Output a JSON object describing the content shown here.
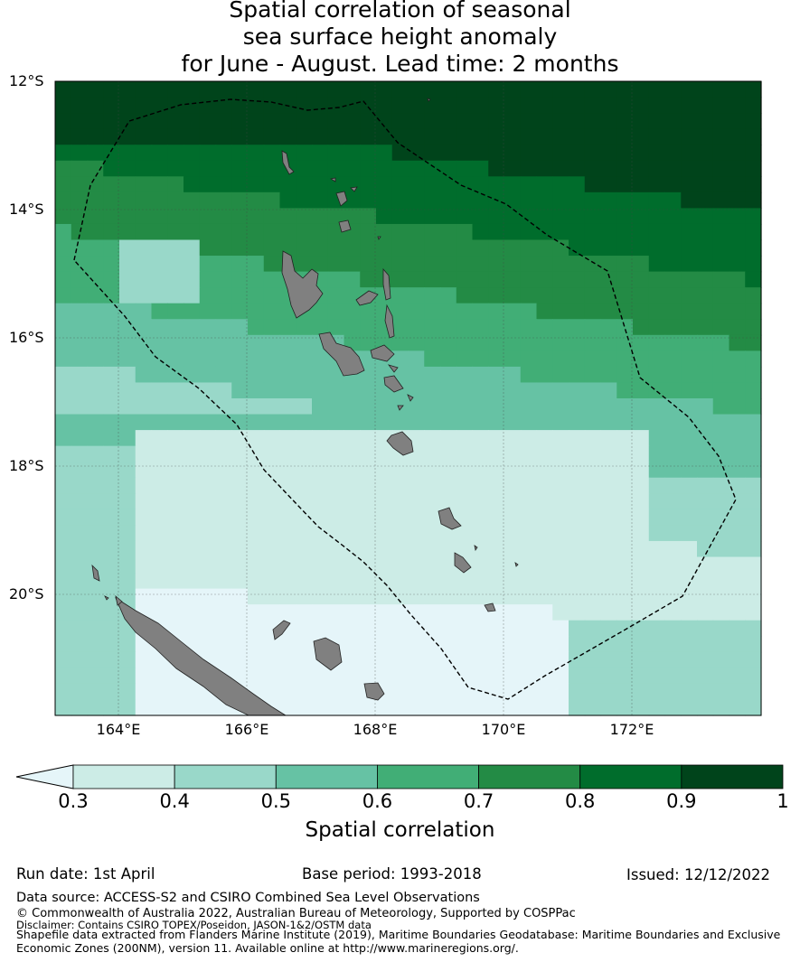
{
  "title": {
    "line1": "Spatial correlation of seasonal",
    "line2": "sea surface height anomaly",
    "line3": "for June - August. Lead time: 2 months"
  },
  "map": {
    "lat_labels": [
      "12°S",
      "14°S",
      "16°S",
      "18°S",
      "20°S"
    ],
    "lon_labels": [
      "164°E",
      "166°E",
      "168°E",
      "170°E",
      "172°E"
    ],
    "extent": {
      "lon_min": 163,
      "lon_max": 174,
      "lat_min": -21.9,
      "lat_max": -12
    },
    "land_color": "#808080",
    "eez_boundary": "dashed"
  },
  "chart_data": {
    "type": "heatmap",
    "title": "",
    "colorbar": {
      "label": "Spatial correlation",
      "bounds": [
        0.3,
        0.4,
        0.5,
        0.6,
        0.7,
        0.8,
        0.9,
        1
      ],
      "tick_labels": [
        "0.3",
        "0.4",
        "0.5",
        "0.6",
        "0.7",
        "0.8",
        "0.9",
        "1"
      ],
      "colors": [
        "#e5f5f9",
        "#ccece6",
        "#99d8c9",
        "#66c2a4",
        "#41ae76",
        "#238b45",
        "#006d2c",
        "#00441b"
      ],
      "extend": "min"
    }
  },
  "footer": {
    "run_date": "Run date: 1st April",
    "base_period": "Base period: 1993-2018",
    "issued": "Issued: 12/12/2022",
    "data_source": "Data source: ACCESS-S2 and CSIRO Combined Sea Level Observations",
    "copyright": "© Commonwealth of Australia 2022, Australian Bureau of Meteorology, Supported by COSPPac",
    "disclaimer": "Disclaimer: Contains CSIRO TOPEX/Poseidon, JASON-1&2/OSTM data",
    "shapefile1": "Shapefile data extracted from Flanders Marine Institute (2019), Maritime Boundaries Geodatabase: Maritime Boundaries and Exclusive",
    "shapefile2": "Economic Zones (200NM), version 11. Available online at http://www.marineregions.org/."
  }
}
